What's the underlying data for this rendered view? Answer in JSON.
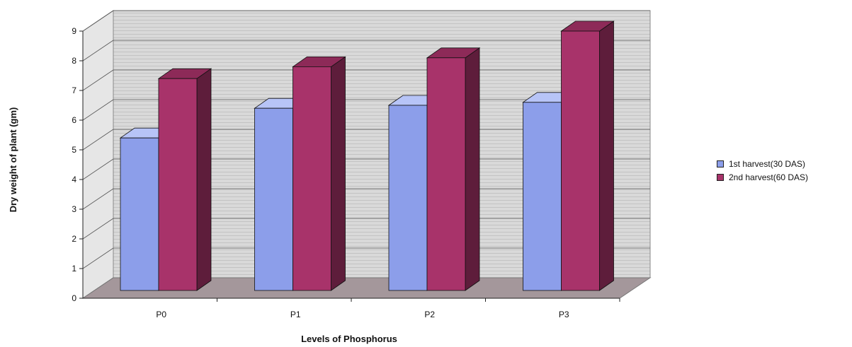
{
  "chart_data": {
    "type": "bar",
    "title": "",
    "xlabel": "Levels of Phosphorus",
    "ylabel": "Dry weight  of plant (gm)",
    "categories": [
      "P0",
      "P1",
      "P2",
      "P3"
    ],
    "ylim": [
      0,
      9
    ],
    "yticks": [
      "0",
      "1",
      "2",
      "3",
      "4",
      "5",
      "6",
      "7",
      "8",
      "9"
    ],
    "grid": true,
    "legend_position": "right",
    "series": [
      {
        "name": "1st harvest(30 DAS)",
        "values": [
          5.4,
          6.4,
          6.5,
          6.6
        ],
        "color": "#8c9eea"
      },
      {
        "name": "2nd  harvest(60 DAS)",
        "values": [
          7.4,
          7.8,
          8.1,
          9.0
        ],
        "color": "#a8336a"
      }
    ]
  }
}
